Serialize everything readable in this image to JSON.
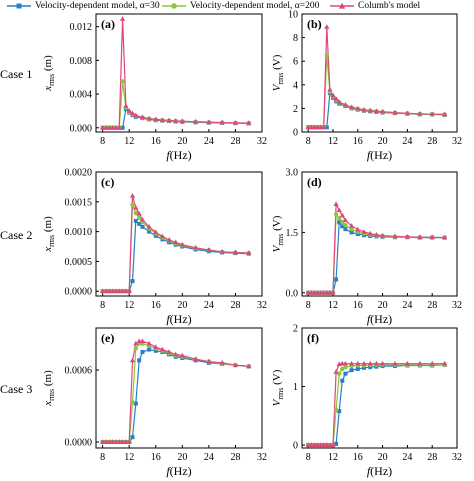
{
  "legend": [
    {
      "label": "Velocity-dependent model, α=30",
      "color": "#2a7fc4",
      "marker": "square"
    },
    {
      "label": "Velocity-dependent model, α=200",
      "color": "#8cc63f",
      "marker": "circle"
    },
    {
      "label": "Columb's model",
      "color": "#e0457b",
      "marker": "triangle"
    }
  ],
  "rows": [
    {
      "label": "Case 1"
    },
    {
      "label": "Case 2"
    },
    {
      "label": "Case 3"
    }
  ],
  "chart_data": [
    {
      "type": "line",
      "panel": "(a)",
      "xlabel": "f (Hz)",
      "ylabel": "x_rms (m)",
      "xlim": [
        7,
        32
      ],
      "xticks": [
        "8",
        "12",
        "16",
        "20",
        "24",
        "28",
        "32"
      ],
      "ylim": [
        -0.0005,
        0.0135
      ],
      "yticks": [
        0,
        0.004,
        0.008,
        0.012
      ],
      "ytick_labels": [
        "0.000",
        "0.004",
        "0.008",
        "0.012"
      ],
      "x": [
        8,
        8.5,
        9,
        9.5,
        10,
        10.5,
        11,
        11.5,
        12,
        12.5,
        13,
        14,
        15,
        16,
        17,
        18,
        19,
        20,
        22,
        24,
        26,
        28,
        30
      ],
      "series": [
        {
          "name": "Velocity-dependent model, α=30",
          "values": [
            0,
            0,
            0,
            0,
            0,
            0,
            0,
            0.0022,
            0.0018,
            0.0015,
            0.0013,
            0.00115,
            0.001,
            0.0009,
            0.00085,
            0.0008,
            0.00075,
            0.0007,
            0.00065,
            0.0006,
            0.00058,
            0.00055,
            0.00052
          ]
        },
        {
          "name": "Velocity-dependent model, α=200",
          "values": [
            0,
            0,
            0,
            0,
            0,
            0,
            0.0055,
            0.0024,
            0.0019,
            0.0016,
            0.0014,
            0.0012,
            0.00105,
            0.00095,
            0.0009,
            0.00085,
            0.0008,
            0.00075,
            0.0007,
            0.00065,
            0.0006,
            0.00057,
            0.00055
          ]
        },
        {
          "name": "Columb's model",
          "values": [
            0,
            0,
            0,
            0,
            0,
            0,
            0.0129,
            0.0026,
            0.002,
            0.0017,
            0.00145,
            0.00125,
            0.0011,
            0.001,
            0.00092,
            0.00087,
            0.00082,
            0.00078,
            0.00072,
            0.00067,
            0.00062,
            0.00058,
            0.00056
          ]
        }
      ]
    },
    {
      "type": "line",
      "panel": "(b)",
      "xlabel": "f (Hz)",
      "ylabel": "V_rms (V)",
      "xlim": [
        7,
        32
      ],
      "xticks": [
        "8",
        "12",
        "16",
        "20",
        "24",
        "28",
        "32"
      ],
      "ylim": [
        0,
        10
      ],
      "yticks": [
        0,
        2,
        4,
        6,
        8,
        10
      ],
      "ytick_labels": [
        "0",
        "2",
        "4",
        "6",
        "8",
        "10"
      ],
      "x": [
        8,
        8.5,
        9,
        9.5,
        10,
        10.5,
        11,
        11.5,
        12,
        12.5,
        13,
        14,
        15,
        16,
        17,
        18,
        19,
        20,
        22,
        24,
        26,
        28,
        30
      ],
      "series": [
        {
          "name": "Velocity-dependent model, α=30",
          "values": [
            0.4,
            0.4,
            0.4,
            0.4,
            0.4,
            0.4,
            0.4,
            3.3,
            2.9,
            2.6,
            2.4,
            2.2,
            2.0,
            1.9,
            1.8,
            1.75,
            1.7,
            1.65,
            1.6,
            1.55,
            1.5,
            1.5,
            1.45
          ]
        },
        {
          "name": "Velocity-dependent model, α=200",
          "values": [
            0.4,
            0.4,
            0.4,
            0.4,
            0.4,
            0.4,
            6.5,
            3.4,
            3.0,
            2.7,
            2.5,
            2.25,
            2.05,
            1.95,
            1.85,
            1.8,
            1.75,
            1.7,
            1.62,
            1.57,
            1.52,
            1.5,
            1.48
          ]
        },
        {
          "name": "Columb's model",
          "values": [
            0.4,
            0.4,
            0.4,
            0.4,
            0.4,
            0.4,
            8.9,
            3.6,
            3.1,
            2.8,
            2.55,
            2.3,
            2.1,
            1.98,
            1.88,
            1.82,
            1.77,
            1.72,
            1.64,
            1.58,
            1.54,
            1.51,
            1.49
          ]
        }
      ]
    },
    {
      "type": "line",
      "panel": "(c)",
      "xlabel": "f (Hz)",
      "ylabel": "x_rms (m)",
      "xlim": [
        7,
        32
      ],
      "xticks": [
        "8",
        "12",
        "16",
        "20",
        "24",
        "28",
        "32"
      ],
      "ylim": [
        -8e-05,
        0.002
      ],
      "yticks": [
        0,
        0.0005,
        0.001,
        0.0015,
        0.002
      ],
      "ytick_labels": [
        "0.0000",
        "0.0005",
        "0.0010",
        "0.0015",
        "0.0020"
      ],
      "x": [
        8,
        8.5,
        9,
        9.5,
        10,
        10.5,
        11,
        11.5,
        12,
        12.5,
        13,
        13.5,
        14,
        15,
        16,
        17,
        18,
        19,
        20,
        22,
        24,
        26,
        28,
        30
      ],
      "series": [
        {
          "name": "Velocity-dependent model, α=30",
          "values": [
            0,
            0,
            0,
            0,
            0,
            0,
            0,
            0,
            0,
            0.00017,
            0.00118,
            0.00113,
            0.00108,
            0.001,
            0.00093,
            0.00087,
            0.00082,
            0.00078,
            0.00075,
            0.0007,
            0.00067,
            0.00065,
            0.00064,
            0.00063
          ]
        },
        {
          "name": "Velocity-dependent model, α=200",
          "values": [
            0,
            0,
            0,
            0,
            0,
            0,
            0,
            0,
            0,
            0.00145,
            0.00131,
            0.00123,
            0.00116,
            0.00105,
            0.00097,
            0.0009,
            0.00085,
            0.0008,
            0.00077,
            0.00072,
            0.00069,
            0.00066,
            0.00065,
            0.00064
          ]
        },
        {
          "name": "Columb's model",
          "values": [
            0,
            0,
            0,
            0,
            0,
            0,
            0,
            0,
            0,
            0.0016,
            0.0014,
            0.0013,
            0.0012,
            0.00108,
            0.00099,
            0.00092,
            0.00086,
            0.00082,
            0.00078,
            0.00073,
            0.00069,
            0.00066,
            0.00065,
            0.00064
          ]
        }
      ]
    },
    {
      "type": "line",
      "panel": "(d)",
      "xlabel": "f (Hz)",
      "ylabel": "V_rms (V)",
      "xlim": [
        7,
        32
      ],
      "xticks": [
        "8",
        "12",
        "16",
        "20",
        "24",
        "28",
        "32"
      ],
      "ylim": [
        -0.08,
        3.0
      ],
      "yticks": [
        0,
        1.5,
        3.0
      ],
      "ytick_labels": [
        "0.0",
        "1.5",
        "3.0"
      ],
      "x": [
        8,
        8.5,
        9,
        9.5,
        10,
        10.5,
        11,
        11.5,
        12,
        12.5,
        13,
        13.5,
        14,
        15,
        16,
        17,
        18,
        19,
        20,
        22,
        24,
        26,
        28,
        30
      ],
      "series": [
        {
          "name": "Velocity-dependent model, α=30",
          "values": [
            0,
            0,
            0,
            0,
            0,
            0,
            0,
            0,
            0,
            0.33,
            1.75,
            1.65,
            1.58,
            1.5,
            1.46,
            1.43,
            1.41,
            1.4,
            1.39,
            1.38,
            1.38,
            1.37,
            1.37,
            1.37
          ]
        },
        {
          "name": "Velocity-dependent model, α=200",
          "values": [
            0,
            0,
            0,
            0,
            0,
            0,
            0,
            0,
            0,
            1.95,
            1.85,
            1.76,
            1.68,
            1.58,
            1.51,
            1.47,
            1.44,
            1.42,
            1.41,
            1.39,
            1.38,
            1.38,
            1.37,
            1.37
          ]
        },
        {
          "name": "Columb's model",
          "values": [
            0,
            0,
            0,
            0,
            0,
            0,
            0,
            0,
            0,
            2.2,
            2.05,
            1.92,
            1.8,
            1.66,
            1.57,
            1.51,
            1.47,
            1.44,
            1.42,
            1.4,
            1.39,
            1.38,
            1.38,
            1.37
          ]
        }
      ]
    },
    {
      "type": "line",
      "panel": "(e)",
      "xlabel": "f (Hz)",
      "ylabel": "x_rms (m)",
      "xlim": [
        7,
        32
      ],
      "xticks": [
        "8",
        "12",
        "16",
        "20",
        "24",
        "28",
        "32"
      ],
      "ylim": [
        -5e-05,
        0.00095
      ],
      "yticks": [
        0,
        0.0006
      ],
      "ytick_labels": [
        "0.0000",
        "0.0006"
      ],
      "x": [
        8,
        8.5,
        9,
        9.5,
        10,
        10.5,
        11,
        11.5,
        12,
        12.5,
        13,
        13.5,
        14,
        15,
        16,
        17,
        18,
        19,
        20,
        22,
        24,
        26,
        28,
        30
      ],
      "series": [
        {
          "name": "Velocity-dependent model, α=30",
          "values": [
            0,
            0,
            0,
            0,
            0,
            0,
            0,
            0,
            0,
            4e-05,
            0.00032,
            0.00068,
            0.00075,
            0.00077,
            0.00076,
            0.00075,
            0.00073,
            0.00071,
            0.0007,
            0.00068,
            0.00066,
            0.00065,
            0.00064,
            0.00063
          ]
        },
        {
          "name": "Velocity-dependent model, α=200",
          "values": [
            0,
            0,
            0,
            0,
            0,
            0,
            0,
            0,
            0,
            0.00033,
            0.00078,
            0.00082,
            0.00082,
            0.0008,
            0.00078,
            0.00076,
            0.00074,
            0.00072,
            0.00071,
            0.00069,
            0.00067,
            0.00065,
            0.00064,
            0.00063
          ]
        },
        {
          "name": "Columb's model",
          "values": [
            0,
            0,
            0,
            0,
            0,
            0,
            0,
            0,
            0,
            0.00068,
            0.00082,
            0.00084,
            0.00084,
            0.00082,
            0.00079,
            0.00077,
            0.00075,
            0.00073,
            0.00072,
            0.00069,
            0.00067,
            0.00066,
            0.00064,
            0.00063
          ]
        }
      ]
    },
    {
      "type": "line",
      "panel": "(f)",
      "xlabel": "f (Hz)",
      "ylabel": "V_rms (V)",
      "xlim": [
        7,
        32
      ],
      "xticks": [
        "8",
        "12",
        "16",
        "20",
        "24",
        "28",
        "32"
      ],
      "ylim": [
        -0.05,
        2.0
      ],
      "yticks": [
        0,
        1,
        2
      ],
      "ytick_labels": [
        "0",
        "1",
        "2"
      ],
      "x": [
        8,
        8.5,
        9,
        9.5,
        10,
        10.5,
        11,
        11.5,
        12,
        12.5,
        13,
        13.5,
        14,
        15,
        16,
        17,
        18,
        19,
        20,
        22,
        24,
        26,
        28,
        30
      ],
      "series": [
        {
          "name": "Velocity-dependent model, α=30",
          "values": [
            0,
            0,
            0,
            0,
            0,
            0,
            0,
            0,
            0,
            0.02,
            0.58,
            1.1,
            1.22,
            1.28,
            1.3,
            1.32,
            1.33,
            1.34,
            1.35,
            1.35,
            1.36,
            1.36,
            1.36,
            1.37
          ]
        },
        {
          "name": "Velocity-dependent model, α=200",
          "values": [
            0,
            0,
            0,
            0,
            0,
            0,
            0,
            0,
            0,
            0.6,
            1.22,
            1.3,
            1.33,
            1.35,
            1.36,
            1.36,
            1.37,
            1.37,
            1.37,
            1.37,
            1.37,
            1.37,
            1.37,
            1.37
          ]
        },
        {
          "name": "Columb's model",
          "values": [
            0,
            0,
            0,
            0,
            0,
            0,
            0,
            0,
            0,
            1.25,
            1.38,
            1.39,
            1.39,
            1.39,
            1.39,
            1.39,
            1.39,
            1.39,
            1.39,
            1.39,
            1.39,
            1.39,
            1.39,
            1.39
          ]
        }
      ]
    }
  ]
}
